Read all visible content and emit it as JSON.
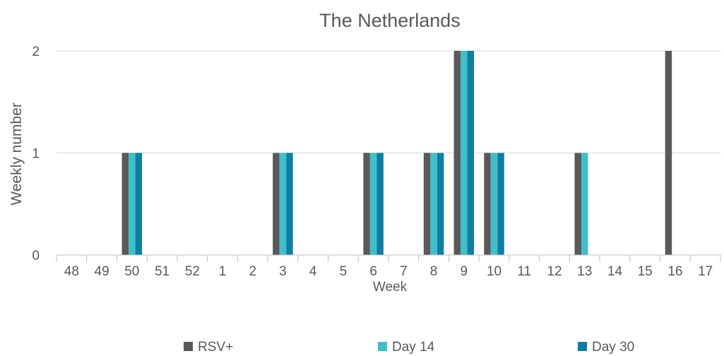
{
  "chart_data": {
    "type": "bar",
    "title": "The Netherlands",
    "xlabel": "Week",
    "ylabel": "Weekly number",
    "categories": [
      "48",
      "49",
      "50",
      "51",
      "52",
      "1",
      "2",
      "3",
      "4",
      "5",
      "6",
      "7",
      "8",
      "9",
      "10",
      "11",
      "12",
      "13",
      "14",
      "15",
      "16",
      "17"
    ],
    "yticks": [
      "0",
      "1",
      "2"
    ],
    "ylim": [
      0,
      2
    ],
    "grid": true,
    "legend_position": "bottom",
    "series": [
      {
        "name": "RSV+",
        "color": "#595959",
        "values": [
          0,
          0,
          1,
          0,
          0,
          0,
          0,
          1,
          0,
          0,
          1,
          0,
          1,
          2,
          1,
          0,
          0,
          1,
          0,
          0,
          2,
          0
        ]
      },
      {
        "name": "Day 14",
        "color": "#3fbfca",
        "values": [
          0,
          0,
          1,
          0,
          0,
          0,
          0,
          1,
          0,
          0,
          1,
          0,
          1,
          2,
          1,
          0,
          0,
          1,
          0,
          0,
          0,
          0
        ]
      },
      {
        "name": "Day 30",
        "color": "#0f7ea3",
        "values": [
          0,
          0,
          1,
          0,
          0,
          0,
          0,
          1,
          0,
          0,
          1,
          0,
          1,
          2,
          1,
          0,
          0,
          0,
          0,
          0,
          0,
          0
        ]
      }
    ]
  }
}
